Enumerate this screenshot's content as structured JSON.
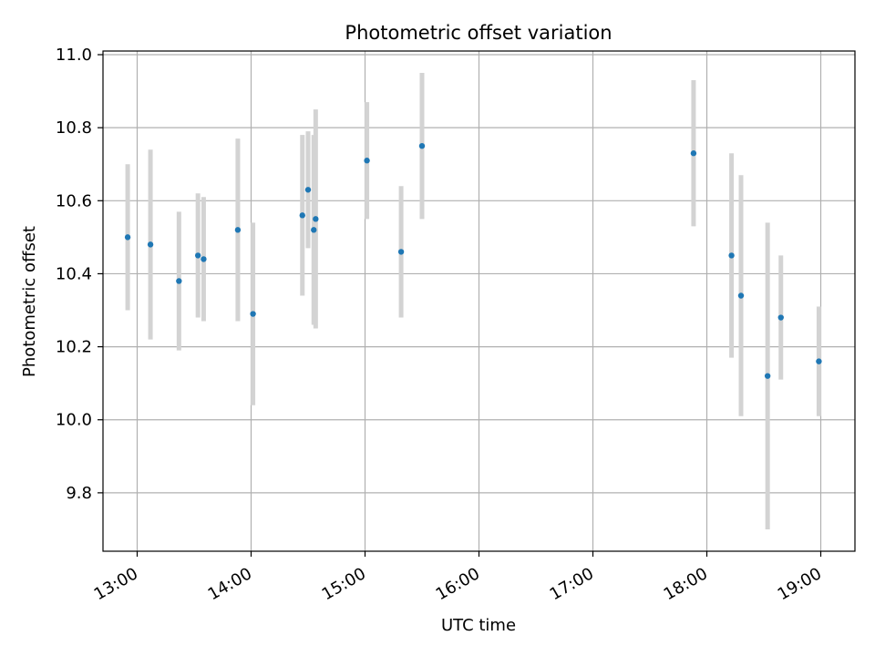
{
  "chart_data": {
    "type": "scatter",
    "title": "Photometric offset variation",
    "xlabel": "UTC time",
    "ylabel": "Photometric offset",
    "x_ticks": [
      "13:00",
      "14:00",
      "15:00",
      "16:00",
      "17:00",
      "18:00",
      "19:00"
    ],
    "y_ticks": [
      "9.8",
      "10.0",
      "10.2",
      "10.4",
      "10.6",
      "10.8",
      "11.0"
    ],
    "ylim": [
      9.64,
      11.01
    ],
    "xlim": [
      "12:42",
      "19:18"
    ],
    "grid": true,
    "colors": {
      "points": "#1f77b4",
      "errorbars": "#d3d3d3",
      "grid": "#b0b0b0"
    },
    "series": [
      {
        "points": [
          {
            "x": "12:55",
            "y": 10.5,
            "err": 0.2
          },
          {
            "x": "13:07",
            "y": 10.48,
            "err": 0.26
          },
          {
            "x": "13:22",
            "y": 10.38,
            "err": 0.19
          },
          {
            "x": "13:32",
            "y": 10.45,
            "err": 0.17
          },
          {
            "x": "13:35",
            "y": 10.44,
            "err": 0.17
          },
          {
            "x": "13:53",
            "y": 10.52,
            "err": 0.25
          },
          {
            "x": "14:01",
            "y": 10.29,
            "err": 0.25
          },
          {
            "x": "14:27",
            "y": 10.56,
            "err": 0.22
          },
          {
            "x": "14:30",
            "y": 10.63,
            "err": 0.16
          },
          {
            "x": "14:33",
            "y": 10.52,
            "err": 0.26
          },
          {
            "x": "14:34",
            "y": 10.55,
            "err": 0.3
          },
          {
            "x": "15:01",
            "y": 10.71,
            "err": 0.16
          },
          {
            "x": "15:19",
            "y": 10.46,
            "err": 0.18
          },
          {
            "x": "15:30",
            "y": 10.75,
            "err": 0.2
          },
          {
            "x": "17:53",
            "y": 10.73,
            "err": 0.2
          },
          {
            "x": "18:13",
            "y": 10.45,
            "err": 0.28
          },
          {
            "x": "18:18",
            "y": 10.34,
            "err": 0.33
          },
          {
            "x": "18:32",
            "y": 10.12,
            "err": 0.42
          },
          {
            "x": "18:39",
            "y": 10.28,
            "err": 0.17
          },
          {
            "x": "18:59",
            "y": 10.16,
            "err": 0.15
          }
        ]
      }
    ]
  }
}
